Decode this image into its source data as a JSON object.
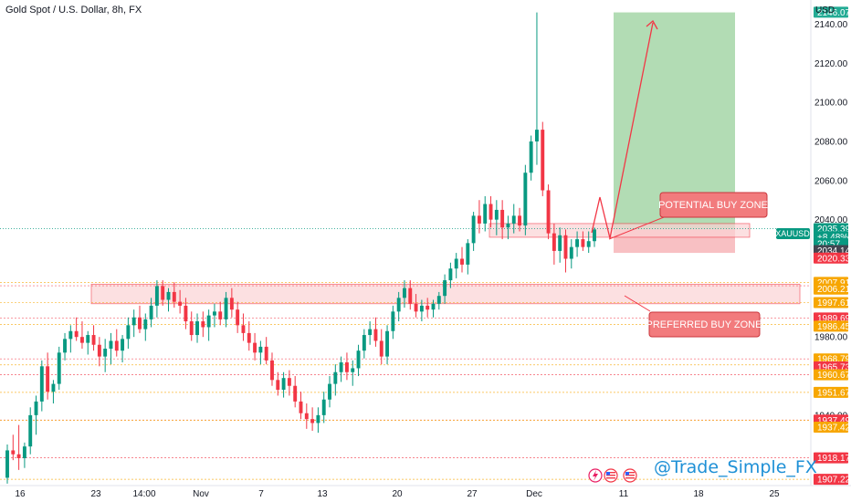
{
  "header": {
    "title": "Gold Spot / U.S. Dollar, 8h, FX",
    "currency": "USD"
  },
  "symbol_label": "XAUUSD",
  "watermark": "@Trade_Simple_FX",
  "chart_data": {
    "type": "candlestick",
    "title": "Gold Spot / U.S. Dollar, 8h, FX",
    "xlabel": "",
    "ylabel": "",
    "ylim": [
      1904,
      2150
    ],
    "grid": false,
    "y_ticks": [
      "2140.00",
      "2120.00",
      "2100.00",
      "2080.00",
      "2060.00",
      "2040.00",
      "1980.00",
      "1940.00"
    ],
    "x_ticks": [
      "16",
      "23",
      "14:00",
      "Nov",
      "7",
      "13",
      "20",
      "27",
      "Dec",
      "11",
      "18",
      "25"
    ],
    "candles": [
      {
        "o": 1908,
        "h": 1925,
        "l": 1905,
        "c": 1922
      },
      {
        "o": 1922,
        "h": 1930,
        "l": 1917,
        "c": 1920
      },
      {
        "o": 1920,
        "h": 1935,
        "l": 1912,
        "c": 1918
      },
      {
        "o": 1918,
        "h": 1926,
        "l": 1913,
        "c": 1924
      },
      {
        "o": 1924,
        "h": 1944,
        "l": 1920,
        "c": 1940
      },
      {
        "o": 1940,
        "h": 1950,
        "l": 1930,
        "c": 1947
      },
      {
        "o": 1947,
        "h": 1968,
        "l": 1942,
        "c": 1965
      },
      {
        "o": 1965,
        "h": 1972,
        "l": 1948,
        "c": 1952
      },
      {
        "o": 1952,
        "h": 1958,
        "l": 1946,
        "c": 1956
      },
      {
        "o": 1956,
        "h": 1975,
        "l": 1953,
        "c": 1972
      },
      {
        "o": 1972,
        "h": 1982,
        "l": 1968,
        "c": 1979
      },
      {
        "o": 1979,
        "h": 1986,
        "l": 1972,
        "c": 1983
      },
      {
        "o": 1983,
        "h": 1990,
        "l": 1978,
        "c": 1980
      },
      {
        "o": 1980,
        "h": 1988,
        "l": 1974,
        "c": 1977
      },
      {
        "o": 1977,
        "h": 1983,
        "l": 1971,
        "c": 1981
      },
      {
        "o": 1981,
        "h": 1986,
        "l": 1973,
        "c": 1976
      },
      {
        "o": 1976,
        "h": 1980,
        "l": 1965,
        "c": 1970
      },
      {
        "o": 1970,
        "h": 1979,
        "l": 1962,
        "c": 1974
      },
      {
        "o": 1974,
        "h": 1982,
        "l": 1966,
        "c": 1978
      },
      {
        "o": 1978,
        "h": 1984,
        "l": 1970,
        "c": 1973
      },
      {
        "o": 1973,
        "h": 1981,
        "l": 1967,
        "c": 1979
      },
      {
        "o": 1979,
        "h": 1990,
        "l": 1974,
        "c": 1986
      },
      {
        "o": 1986,
        "h": 1994,
        "l": 1980,
        "c": 1990
      },
      {
        "o": 1990,
        "h": 1996,
        "l": 1982,
        "c": 1984
      },
      {
        "o": 1984,
        "h": 1992,
        "l": 1978,
        "c": 1989
      },
      {
        "o": 1989,
        "h": 2000,
        "l": 1985,
        "c": 1996
      },
      {
        "o": 1996,
        "h": 2009,
        "l": 1990,
        "c": 2006
      },
      {
        "o": 2006,
        "h": 2009,
        "l": 1996,
        "c": 1999
      },
      {
        "o": 1999,
        "h": 2005,
        "l": 1993,
        "c": 2003
      },
      {
        "o": 2003,
        "h": 2008,
        "l": 1995,
        "c": 1998
      },
      {
        "o": 1998,
        "h": 2004,
        "l": 1992,
        "c": 1996
      },
      {
        "o": 1996,
        "h": 2000,
        "l": 1984,
        "c": 1988
      },
      {
        "o": 1988,
        "h": 1993,
        "l": 1978,
        "c": 1981
      },
      {
        "o": 1981,
        "h": 1992,
        "l": 1977,
        "c": 1988
      },
      {
        "o": 1988,
        "h": 1993,
        "l": 1980,
        "c": 1985
      },
      {
        "o": 1985,
        "h": 1994,
        "l": 1978,
        "c": 1991
      },
      {
        "o": 1991,
        "h": 1997,
        "l": 1985,
        "c": 1993
      },
      {
        "o": 1993,
        "h": 1998,
        "l": 1986,
        "c": 1989
      },
      {
        "o": 1989,
        "h": 2003,
        "l": 1985,
        "c": 2000
      },
      {
        "o": 2000,
        "h": 2005,
        "l": 1990,
        "c": 1994
      },
      {
        "o": 1994,
        "h": 1998,
        "l": 1982,
        "c": 1986
      },
      {
        "o": 1986,
        "h": 1992,
        "l": 1978,
        "c": 1982
      },
      {
        "o": 1982,
        "h": 1988,
        "l": 1973,
        "c": 1977
      },
      {
        "o": 1977,
        "h": 1982,
        "l": 1968,
        "c": 1972
      },
      {
        "o": 1972,
        "h": 1978,
        "l": 1966,
        "c": 1975
      },
      {
        "o": 1975,
        "h": 1980,
        "l": 1966,
        "c": 1968
      },
      {
        "o": 1968,
        "h": 1972,
        "l": 1955,
        "c": 1958
      },
      {
        "o": 1958,
        "h": 1962,
        "l": 1950,
        "c": 1953
      },
      {
        "o": 1953,
        "h": 1962,
        "l": 1949,
        "c": 1959
      },
      {
        "o": 1959,
        "h": 1963,
        "l": 1950,
        "c": 1955
      },
      {
        "o": 1955,
        "h": 1960,
        "l": 1944,
        "c": 1947
      },
      {
        "o": 1947,
        "h": 1952,
        "l": 1938,
        "c": 1941
      },
      {
        "o": 1941,
        "h": 1946,
        "l": 1933,
        "c": 1938
      },
      {
        "o": 1938,
        "h": 1944,
        "l": 1932,
        "c": 1936
      },
      {
        "o": 1936,
        "h": 1944,
        "l": 1931,
        "c": 1940
      },
      {
        "o": 1940,
        "h": 1952,
        "l": 1936,
        "c": 1948
      },
      {
        "o": 1948,
        "h": 1960,
        "l": 1944,
        "c": 1956
      },
      {
        "o": 1956,
        "h": 1966,
        "l": 1950,
        "c": 1962
      },
      {
        "o": 1962,
        "h": 1970,
        "l": 1957,
        "c": 1967
      },
      {
        "o": 1967,
        "h": 1972,
        "l": 1958,
        "c": 1962
      },
      {
        "o": 1962,
        "h": 1968,
        "l": 1955,
        "c": 1964
      },
      {
        "o": 1964,
        "h": 1976,
        "l": 1960,
        "c": 1973
      },
      {
        "o": 1973,
        "h": 1984,
        "l": 1969,
        "c": 1981
      },
      {
        "o": 1981,
        "h": 1988,
        "l": 1976,
        "c": 1984
      },
      {
        "o": 1984,
        "h": 1990,
        "l": 1975,
        "c": 1978
      },
      {
        "o": 1978,
        "h": 1984,
        "l": 1966,
        "c": 1970
      },
      {
        "o": 1970,
        "h": 1986,
        "l": 1966,
        "c": 1983
      },
      {
        "o": 1983,
        "h": 1996,
        "l": 1979,
        "c": 1993
      },
      {
        "o": 1993,
        "h": 2003,
        "l": 1988,
        "c": 2000
      },
      {
        "o": 2000,
        "h": 2009,
        "l": 1995,
        "c": 2005
      },
      {
        "o": 2005,
        "h": 2009,
        "l": 1994,
        "c": 1997
      },
      {
        "o": 1997,
        "h": 2002,
        "l": 1990,
        "c": 1993
      },
      {
        "o": 1993,
        "h": 1999,
        "l": 1988,
        "c": 1996
      },
      {
        "o": 1996,
        "h": 2000,
        "l": 1990,
        "c": 1994
      },
      {
        "o": 1994,
        "h": 1999,
        "l": 1990,
        "c": 1997
      },
      {
        "o": 1997,
        "h": 2003,
        "l": 1994,
        "c": 2001
      },
      {
        "o": 2001,
        "h": 2012,
        "l": 1997,
        "c": 2009
      },
      {
        "o": 2009,
        "h": 2018,
        "l": 2005,
        "c": 2015
      },
      {
        "o": 2015,
        "h": 2023,
        "l": 2010,
        "c": 2020
      },
      {
        "o": 2020,
        "h": 2026,
        "l": 2013,
        "c": 2017
      },
      {
        "o": 2017,
        "h": 2030,
        "l": 2012,
        "c": 2028
      },
      {
        "o": 2028,
        "h": 2044,
        "l": 2024,
        "c": 2042
      },
      {
        "o": 2042,
        "h": 2050,
        "l": 2033,
        "c": 2038
      },
      {
        "o": 2038,
        "h": 2052,
        "l": 2034,
        "c": 2048
      },
      {
        "o": 2048,
        "h": 2052,
        "l": 2036,
        "c": 2040
      },
      {
        "o": 2040,
        "h": 2050,
        "l": 2032,
        "c": 2045
      },
      {
        "o": 2045,
        "h": 2050,
        "l": 2030,
        "c": 2036
      },
      {
        "o": 2036,
        "h": 2042,
        "l": 2030,
        "c": 2038
      },
      {
        "o": 2038,
        "h": 2048,
        "l": 2033,
        "c": 2042
      },
      {
        "o": 2042,
        "h": 2046,
        "l": 2034,
        "c": 2037
      },
      {
        "o": 2037,
        "h": 2068,
        "l": 2032,
        "c": 2064
      },
      {
        "o": 2064,
        "h": 2083,
        "l": 2060,
        "c": 2080
      },
      {
        "o": 2080,
        "h": 2146,
        "l": 2068,
        "c": 2086
      },
      {
        "o": 2086,
        "h": 2090,
        "l": 2052,
        "c": 2055
      },
      {
        "o": 2055,
        "h": 2058,
        "l": 2030,
        "c": 2033
      },
      {
        "o": 2033,
        "h": 2038,
        "l": 2017,
        "c": 2024
      },
      {
        "o": 2024,
        "h": 2036,
        "l": 2018,
        "c": 2032
      },
      {
        "o": 2032,
        "h": 2035,
        "l": 2013,
        "c": 2020
      },
      {
        "o": 2020,
        "h": 2030,
        "l": 2015,
        "c": 2026
      },
      {
        "o": 2026,
        "h": 2034,
        "l": 2021,
        "c": 2030
      },
      {
        "o": 2030,
        "h": 2034,
        "l": 2024,
        "c": 2026
      },
      {
        "o": 2026,
        "h": 2034,
        "l": 2023,
        "c": 2029
      },
      {
        "o": 2029,
        "h": 2036,
        "l": 2026,
        "c": 2035
      }
    ],
    "potential_buy_zone": {
      "label": "POTENTIAL BUY ZONE",
      "from": 2031,
      "to": 2038
    },
    "preferred_buy_zone": {
      "label": "PREFERRED BUY ZONE",
      "from": 1997,
      "to": 2007
    },
    "target_zone": {
      "from": 2035,
      "to": 2146
    },
    "stop_zone": {
      "from": 2023,
      "to": 2035
    },
    "horizontal_lines": [
      2007.91,
      2006.21,
      1997.61,
      1989.69,
      1986.45,
      1968.79,
      1965.73,
      1960.67,
      1951.67,
      1937.49,
      1937.42,
      1918.17,
      1907.22
    ],
    "price_tags": [
      {
        "value": "2146.07",
        "y": 2146.07,
        "color": "#22ab94"
      },
      {
        "value": "2035.39",
        "y": 2035.39,
        "color": "#089981"
      },
      {
        "value": "+8.48%",
        "y": 2031.3,
        "color": "#089981"
      },
      {
        "value": "20:57",
        "y": 2027.7,
        "color": "#089981"
      },
      {
        "value": "2034.14",
        "y": 2024.2,
        "color": "#434651"
      },
      {
        "value": "2020.33",
        "y": 2020.33,
        "color": "#f23645"
      },
      {
        "value": "2007.91",
        "y": 2007.91,
        "color": "#f7a600"
      },
      {
        "value": "2006.21",
        "y": 2004.5,
        "color": "#f7a600"
      },
      {
        "value": "1997.61",
        "y": 1997.61,
        "color": "#f7a600"
      },
      {
        "value": "1989.69",
        "y": 1989.69,
        "color": "#f23645"
      },
      {
        "value": "1986.45",
        "y": 1985.5,
        "color": "#f7a600"
      },
      {
        "value": "1968.79",
        "y": 1968.79,
        "color": "#f7a600"
      },
      {
        "value": "1965.73",
        "y": 1964.7,
        "color": "#f23645"
      },
      {
        "value": "1960.67",
        "y": 1960.67,
        "color": "#f7a600"
      },
      {
        "value": "1951.67",
        "y": 1951.67,
        "color": "#f7a600"
      },
      {
        "value": "1937.49",
        "y": 1937.49,
        "color": "#f23645"
      },
      {
        "value": "1937.42",
        "y": 1933.9,
        "color": "#f7a600"
      },
      {
        "value": "1918.17",
        "y": 1918.17,
        "color": "#f23645"
      },
      {
        "value": "1907.22",
        "y": 1907.22,
        "color": "#f23645"
      }
    ]
  }
}
